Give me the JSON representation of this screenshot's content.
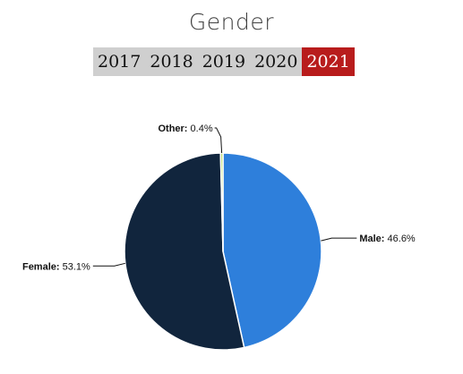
{
  "title": "Gender",
  "years": [
    {
      "label": "2017",
      "active": false
    },
    {
      "label": "2018",
      "active": false
    },
    {
      "label": "2019",
      "active": false
    },
    {
      "label": "2020",
      "active": false
    },
    {
      "label": "2021",
      "active": true
    }
  ],
  "colors": {
    "male": "#2e7fdb",
    "female": "#11253d",
    "other": "#b7d96a",
    "active_year": "#b81c1c",
    "inactive_year": "#cfcfcf"
  },
  "chart_data": {
    "type": "pie",
    "title": "Gender",
    "slices": [
      {
        "name": "Male",
        "value": 46.6,
        "label": "46.6%",
        "color": "#2e7fdb"
      },
      {
        "name": "Female",
        "value": 53.1,
        "label": "53.1%",
        "color": "#11253d"
      },
      {
        "name": "Other",
        "value": 0.4,
        "label": "0.4%",
        "color": "#b7d96a"
      }
    ]
  }
}
